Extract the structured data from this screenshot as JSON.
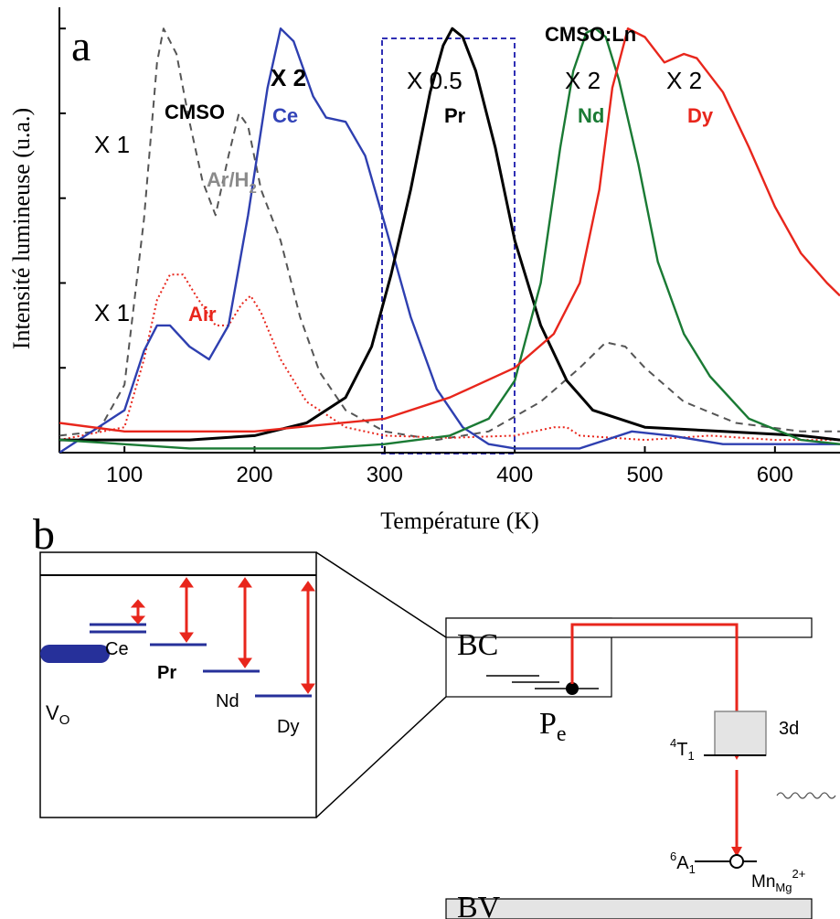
{
  "panel_a": {
    "label": "a",
    "group_label": "CMSO:Ln",
    "chart_data": {
      "type": "line",
      "xlabel": "Température (K)",
      "ylabel": "Intensité lumineuse (u.a.)",
      "xlim": [
        50,
        650
      ],
      "ylim": [
        0,
        1.05
      ],
      "xticks": [
        100,
        200,
        300,
        400,
        500,
        600
      ],
      "yticks": [
        0.2,
        0.4,
        0.6,
        0.8,
        1.0
      ],
      "grid": false,
      "legend": "none (curves labelled directly)",
      "highlight_box": {
        "x_range": [
          296,
          396
        ],
        "label": "X 0.5"
      },
      "series": [
        {
          "name": "Ar/H2",
          "color": "#555555",
          "dash": "dashed",
          "points": [
            [
              50,
              0.04
            ],
            [
              80,
              0.05
            ],
            [
              100,
              0.16
            ],
            [
              115,
              0.55
            ],
            [
              125,
              0.92
            ],
            [
              130,
              1.0
            ],
            [
              140,
              0.94
            ],
            [
              150,
              0.78
            ],
            [
              160,
              0.64
            ],
            [
              170,
              0.56
            ],
            [
              180,
              0.7
            ],
            [
              188,
              0.8
            ],
            [
              195,
              0.77
            ],
            [
              205,
              0.62
            ],
            [
              220,
              0.5
            ],
            [
              235,
              0.32
            ],
            [
              250,
              0.19
            ],
            [
              270,
              0.1
            ],
            [
              300,
              0.05
            ],
            [
              340,
              0.03
            ],
            [
              380,
              0.05
            ],
            [
              420,
              0.12
            ],
            [
              450,
              0.2
            ],
            [
              470,
              0.26
            ],
            [
              485,
              0.25
            ],
            [
              500,
              0.2
            ],
            [
              530,
              0.12
            ],
            [
              570,
              0.07
            ],
            [
              620,
              0.05
            ],
            [
              650,
              0.05
            ]
          ]
        },
        {
          "name": "Air",
          "color": "#e8261c",
          "dash": "dotted",
          "points": [
            [
              50,
              0.03
            ],
            [
              100,
              0.06
            ],
            [
              115,
              0.22
            ],
            [
              125,
              0.36
            ],
            [
              135,
              0.42
            ],
            [
              145,
              0.42
            ],
            [
              155,
              0.37
            ],
            [
              170,
              0.3
            ],
            [
              180,
              0.3
            ],
            [
              190,
              0.35
            ],
            [
              197,
              0.37
            ],
            [
              205,
              0.33
            ],
            [
              220,
              0.22
            ],
            [
              240,
              0.12
            ],
            [
              270,
              0.06
            ],
            [
              300,
              0.04
            ],
            [
              350,
              0.035
            ],
            [
              400,
              0.04
            ],
            [
              430,
              0.06
            ],
            [
              440,
              0.06
            ],
            [
              450,
              0.04
            ],
            [
              500,
              0.03
            ],
            [
              550,
              0.04
            ],
            [
              600,
              0.03
            ],
            [
              650,
              0.03
            ]
          ]
        },
        {
          "name": "Ce",
          "label_prefix": "X 2",
          "color": "#2e3fb0",
          "dash": "solid",
          "points": [
            [
              50,
              0.0
            ],
            [
              100,
              0.1
            ],
            [
              115,
              0.24
            ],
            [
              125,
              0.3
            ],
            [
              135,
              0.3
            ],
            [
              150,
              0.25
            ],
            [
              165,
              0.22
            ],
            [
              180,
              0.3
            ],
            [
              195,
              0.56
            ],
            [
              210,
              0.86
            ],
            [
              220,
              1.0
            ],
            [
              230,
              0.97
            ],
            [
              245,
              0.84
            ],
            [
              255,
              0.79
            ],
            [
              270,
              0.78
            ],
            [
              285,
              0.7
            ],
            [
              300,
              0.54
            ],
            [
              320,
              0.32
            ],
            [
              340,
              0.15
            ],
            [
              360,
              0.06
            ],
            [
              380,
              0.02
            ],
            [
              400,
              0.01
            ],
            [
              450,
              0.01
            ],
            [
              470,
              0.03
            ],
            [
              490,
              0.05
            ],
            [
              520,
              0.04
            ],
            [
              560,
              0.02
            ],
            [
              650,
              0.02
            ]
          ]
        },
        {
          "name": "Pr",
          "label_prefix": "X 0.5",
          "color": "#000000",
          "dash": "solid",
          "points": [
            [
              50,
              0.03
            ],
            [
              150,
              0.03
            ],
            [
              200,
              0.04
            ],
            [
              240,
              0.07
            ],
            [
              270,
              0.13
            ],
            [
              290,
              0.25
            ],
            [
              305,
              0.42
            ],
            [
              320,
              0.62
            ],
            [
              335,
              0.85
            ],
            [
              345,
              0.96
            ],
            [
              352,
              1.0
            ],
            [
              360,
              0.98
            ],
            [
              370,
              0.9
            ],
            [
              385,
              0.72
            ],
            [
              400,
              0.5
            ],
            [
              420,
              0.3
            ],
            [
              440,
              0.17
            ],
            [
              460,
              0.1
            ],
            [
              500,
              0.06
            ],
            [
              560,
              0.05
            ],
            [
              620,
              0.04
            ],
            [
              650,
              0.03
            ]
          ]
        },
        {
          "name": "Nd",
          "label_prefix": "X 2",
          "color": "#1a7a34",
          "dash": "solid",
          "points": [
            [
              50,
              0.03
            ],
            [
              150,
              0.01
            ],
            [
              250,
              0.01
            ],
            [
              300,
              0.02
            ],
            [
              350,
              0.04
            ],
            [
              380,
              0.08
            ],
            [
              400,
              0.17
            ],
            [
              420,
              0.4
            ],
            [
              435,
              0.72
            ],
            [
              445,
              0.9
            ],
            [
              455,
              0.99
            ],
            [
              462,
              1.0
            ],
            [
              470,
              0.98
            ],
            [
              480,
              0.88
            ],
            [
              495,
              0.68
            ],
            [
              510,
              0.45
            ],
            [
              530,
              0.28
            ],
            [
              550,
              0.18
            ],
            [
              580,
              0.08
            ],
            [
              620,
              0.03
            ],
            [
              650,
              0.02
            ]
          ]
        },
        {
          "name": "Dy",
          "label_prefix": "X 2",
          "color": "#e8261c",
          "dash": "solid",
          "points": [
            [
              50,
              0.07
            ],
            [
              100,
              0.05
            ],
            [
              200,
              0.05
            ],
            [
              300,
              0.08
            ],
            [
              350,
              0.13
            ],
            [
              400,
              0.2
            ],
            [
              430,
              0.28
            ],
            [
              450,
              0.4
            ],
            [
              465,
              0.62
            ],
            [
              475,
              0.86
            ],
            [
              487,
              1.0
            ],
            [
              500,
              0.98
            ],
            [
              515,
              0.92
            ],
            [
              530,
              0.94
            ],
            [
              540,
              0.93
            ],
            [
              560,
              0.85
            ],
            [
              580,
              0.72
            ],
            [
              600,
              0.58
            ],
            [
              620,
              0.47
            ],
            [
              640,
              0.4
            ],
            [
              650,
              0.37
            ]
          ]
        }
      ],
      "curve_labels": {
        "cmso": "CMSO",
        "ar": "Ar/H",
        "ar_sub": "2",
        "air": "Air",
        "ce": "Ce",
        "pr": "Pr",
        "nd": "Nd",
        "dy": "Dy"
      },
      "scale_labels": {
        "ar_scale": "X 1",
        "air_scale": "X 1",
        "ce_scale": "X 2",
        "pr_scale": "X 0.5",
        "nd_scale": "X 2",
        "dy_scale": "X 2"
      }
    }
  },
  "panel_b": {
    "label": "b",
    "inset": {
      "vo_main": "V",
      "vo_sub": "O",
      "levels": [
        "Ce",
        "Pr",
        "Nd",
        "Dy"
      ]
    },
    "band_diagram": {
      "conduction_band": "BC",
      "valence_band": "BV",
      "trap_main": "P",
      "trap_sub": "e",
      "d_orbital": "3d",
      "t1_sup": "4",
      "t1_main": "T",
      "t1_sub": "1",
      "a1_sup": "6",
      "a1_main": "A",
      "a1_sub": "1",
      "mn_main": "Mn",
      "mn_sub": "Mg",
      "mn_sup": "2+"
    },
    "colors": {
      "arrow": "#e8261c",
      "level": "#26309a",
      "box_fill": "#e4e4e4"
    }
  }
}
